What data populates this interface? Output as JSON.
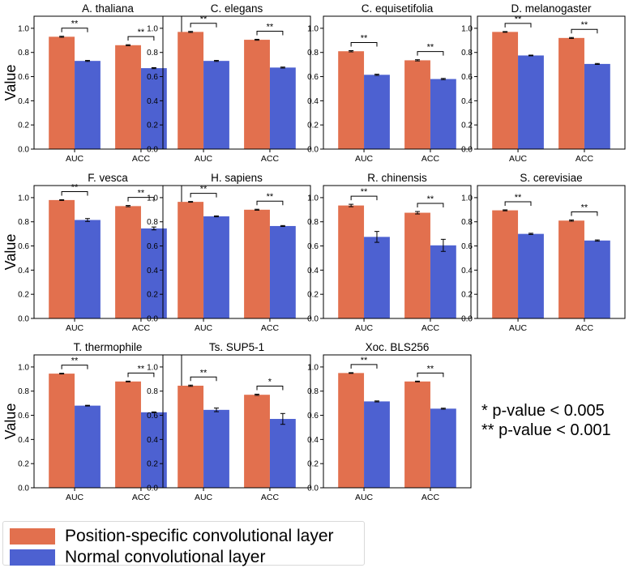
{
  "chart_data": {
    "type": "bar",
    "categories": [
      "AUC",
      "ACC"
    ],
    "ylabel": "Value",
    "ylim": [
      0,
      1.1
    ],
    "yticks": [
      "0.0",
      "0.2",
      "0.4",
      "0.6",
      "0.8",
      "1.0"
    ],
    "series_names": [
      "Position-specific convolutional layer",
      "Normal convolutional layer"
    ],
    "series_colors": [
      "#e2704e",
      "#4d61d1"
    ],
    "panels": [
      {
        "title": "A. thaliana",
        "ps": [
          0.93,
          0.86
        ],
        "ps_err": [
          0.004,
          0.004
        ],
        "normal": [
          0.73,
          0.67
        ],
        "normal_err": [
          0.004,
          0.004
        ],
        "sig": [
          "**",
          "**"
        ]
      },
      {
        "title": "C. elegans",
        "ps": [
          0.97,
          0.905
        ],
        "ps_err": [
          0.004,
          0.004
        ],
        "normal": [
          0.73,
          0.675
        ],
        "normal_err": [
          0.004,
          0.004
        ],
        "sig": [
          "**",
          "**"
        ]
      },
      {
        "title": "C. equisetifolia",
        "ps": [
          0.81,
          0.735
        ],
        "ps_err": [
          0.005,
          0.005
        ],
        "normal": [
          0.615,
          0.58
        ],
        "normal_err": [
          0.005,
          0.005
        ],
        "sig": [
          "**",
          "**"
        ]
      },
      {
        "title": "D. melanogaster",
        "ps": [
          0.97,
          0.92
        ],
        "ps_err": [
          0.003,
          0.004
        ],
        "normal": [
          0.775,
          0.705
        ],
        "normal_err": [
          0.003,
          0.004
        ],
        "sig": [
          "**",
          "**"
        ]
      },
      {
        "title": "F. vesca",
        "ps": [
          0.98,
          0.93
        ],
        "ps_err": [
          0.003,
          0.005
        ],
        "normal": [
          0.815,
          0.745
        ],
        "normal_err": [
          0.012,
          0.012
        ],
        "sig": [
          "**",
          "**"
        ]
      },
      {
        "title": "H. sapiens",
        "ps": [
          0.965,
          0.9
        ],
        "ps_err": [
          0.003,
          0.004
        ],
        "normal": [
          0.845,
          0.765
        ],
        "normal_err": [
          0.004,
          0.004
        ],
        "sig": [
          "**",
          "**"
        ]
      },
      {
        "title": "R. chinensis",
        "ps": [
          0.935,
          0.875
        ],
        "ps_err": [
          0.01,
          0.01
        ],
        "normal": [
          0.675,
          0.605
        ],
        "normal_err": [
          0.045,
          0.05
        ],
        "sig": [
          "**",
          "**"
        ]
      },
      {
        "title": "S. cerevisiae",
        "ps": [
          0.895,
          0.81
        ],
        "ps_err": [
          0.004,
          0.005
        ],
        "normal": [
          0.7,
          0.645
        ],
        "normal_err": [
          0.005,
          0.005
        ],
        "sig": [
          "**",
          "**"
        ]
      },
      {
        "title": "T. thermophile",
        "ps": [
          0.945,
          0.88
        ],
        "ps_err": [
          0.003,
          0.003
        ],
        "normal": [
          0.68,
          0.625
        ],
        "normal_err": [
          0.003,
          0.003
        ],
        "sig": [
          "**",
          "**"
        ]
      },
      {
        "title": "Ts. SUP5-1",
        "ps": [
          0.845,
          0.77
        ],
        "ps_err": [
          0.005,
          0.005
        ],
        "normal": [
          0.645,
          0.57
        ],
        "normal_err": [
          0.015,
          0.045
        ],
        "sig": [
          "**",
          "*"
        ]
      },
      {
        "title": "Xoc. BLS256",
        "ps": [
          0.95,
          0.88
        ],
        "ps_err": [
          0.003,
          0.003
        ],
        "normal": [
          0.715,
          0.655
        ],
        "normal_err": [
          0.004,
          0.004
        ],
        "sig": [
          "**",
          "**"
        ]
      }
    ]
  },
  "legend": {
    "items": [
      {
        "label": "Position-specific convolutional layer",
        "color": "#e2704e"
      },
      {
        "label": "Normal convolutional layer",
        "color": "#4d61d1"
      }
    ]
  },
  "pvalue_notes": {
    "single": "* p-value < 0.005",
    "double": "** p-value < 0.001"
  }
}
